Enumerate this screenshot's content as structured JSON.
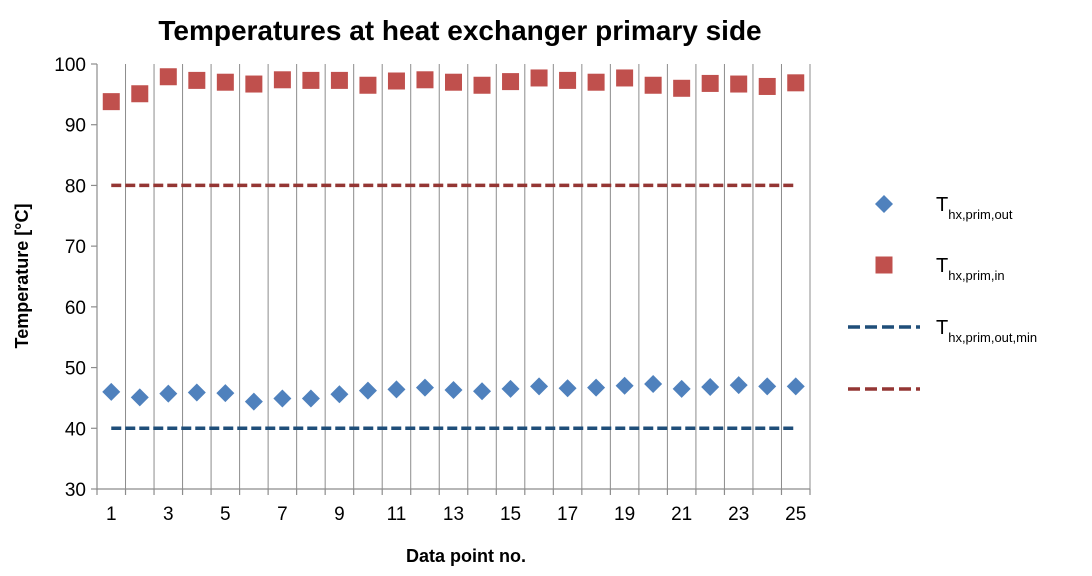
{
  "chart_data": {
    "type": "scatter",
    "title": "Temperatures at heat exchanger primary side",
    "xlabel": "Data point no.",
    "ylabel": "Temperature [°C]",
    "xlim": [
      0.5,
      25.5
    ],
    "ylim": [
      30,
      100
    ],
    "x_ticks": [
      "1",
      "3",
      "5",
      "7",
      "9",
      "11",
      "13",
      "15",
      "17",
      "19",
      "21",
      "23",
      "25"
    ],
    "y_ticks": [
      "30",
      "40",
      "50",
      "60",
      "70",
      "80",
      "90",
      "100"
    ],
    "grid": "vertical-major",
    "legend_position": "right",
    "x": [
      1,
      2,
      3,
      4,
      5,
      6,
      7,
      8,
      9,
      10,
      11,
      12,
      13,
      14,
      15,
      16,
      17,
      18,
      19,
      20,
      21,
      22,
      23,
      24,
      25
    ],
    "series": [
      {
        "name_main": "T",
        "name_sub": "hx,prim,out",
        "marker": "diamond",
        "color": "#4f81bd",
        "values": [
          46.0,
          45.1,
          45.7,
          45.9,
          45.8,
          44.4,
          44.9,
          44.9,
          45.6,
          46.2,
          46.4,
          46.7,
          46.3,
          46.1,
          46.5,
          46.9,
          46.6,
          46.7,
          47.0,
          47.3,
          46.5,
          46.8,
          47.1,
          46.9,
          46.9
        ]
      },
      {
        "name_main": "T",
        "name_sub": "hx,prim,in",
        "marker": "square",
        "color": "#c0504d",
        "values": [
          93.8,
          95.1,
          97.9,
          97.3,
          97.0,
          96.7,
          97.4,
          97.3,
          97.3,
          96.5,
          97.2,
          97.4,
          97.0,
          96.5,
          97.1,
          97.7,
          97.3,
          97.0,
          97.7,
          96.5,
          96.0,
          96.8,
          96.7,
          96.3,
          96.9
        ]
      },
      {
        "name_main": "T",
        "name_sub": "hx,prim,out,min",
        "marker": "dash-line",
        "color": "#1f4e79",
        "values": [
          40,
          40,
          40,
          40,
          40,
          40,
          40,
          40,
          40,
          40,
          40,
          40,
          40,
          40,
          40,
          40,
          40,
          40,
          40,
          40,
          40,
          40,
          40,
          40,
          40
        ]
      },
      {
        "marker": "dash-line",
        "color": "#943634",
        "values": [
          80,
          80,
          80,
          80,
          80,
          80,
          80,
          80,
          80,
          80,
          80,
          80,
          80,
          80,
          80,
          80,
          80,
          80,
          80,
          80,
          80,
          80,
          80,
          80,
          80
        ]
      }
    ]
  }
}
